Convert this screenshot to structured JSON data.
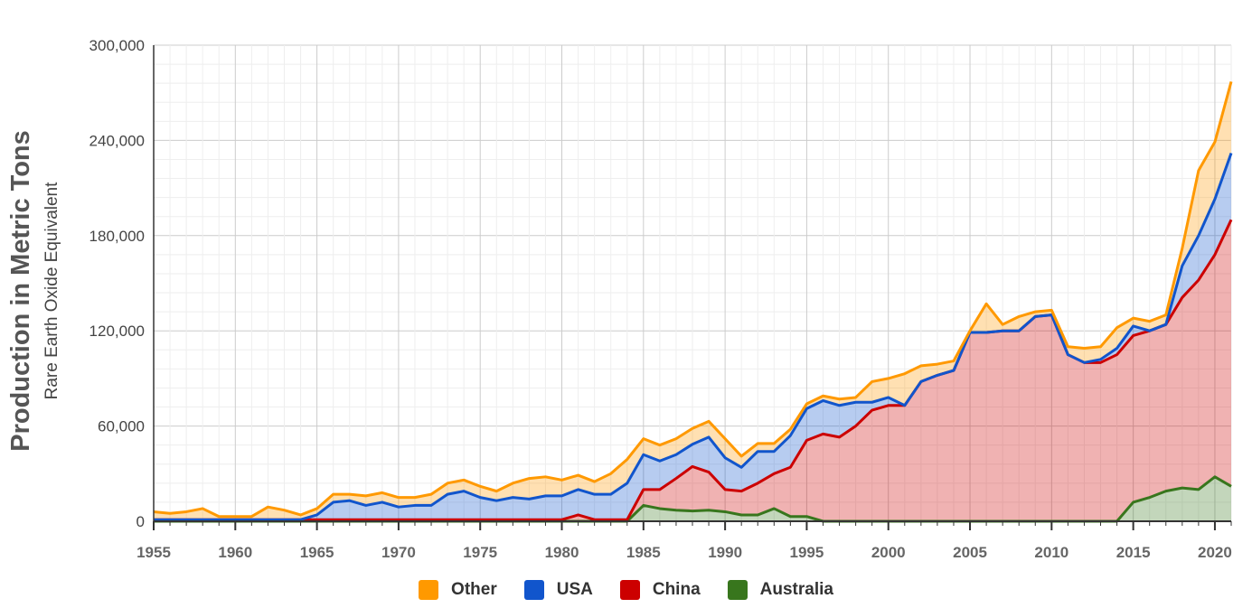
{
  "chart_data": {
    "type": "area",
    "stacked": true,
    "title": "",
    "ylabel": "Production in Metric Tons",
    "ylabel_sub": "Rare Earth Oxide Equivalent",
    "xlabel": "",
    "xlim": [
      1955,
      2021
    ],
    "ylim": [
      0,
      300000
    ],
    "x_ticks": [
      "1955",
      "1960",
      "1965",
      "1970",
      "1975",
      "1980",
      "1985",
      "1990",
      "1995",
      "2000",
      "2005",
      "2010",
      "2015",
      "2020"
    ],
    "y_ticks": [
      "0",
      "60,000",
      "120,000",
      "180,000",
      "240,000",
      "300,000"
    ],
    "y_tick_values": [
      0,
      60000,
      120000,
      180000,
      240000,
      300000
    ],
    "grid": true,
    "legend_position": "bottom",
    "x": [
      1955,
      1956,
      1957,
      1958,
      1959,
      1960,
      1961,
      1962,
      1963,
      1964,
      1965,
      1966,
      1967,
      1968,
      1969,
      1970,
      1971,
      1972,
      1973,
      1974,
      1975,
      1976,
      1977,
      1978,
      1979,
      1980,
      1981,
      1982,
      1983,
      1984,
      1985,
      1986,
      1987,
      1988,
      1989,
      1990,
      1991,
      1992,
      1993,
      1994,
      1995,
      1996,
      1997,
      1998,
      1999,
      2000,
      2001,
      2002,
      2003,
      2004,
      2005,
      2006,
      2007,
      2008,
      2009,
      2010,
      2011,
      2012,
      2013,
      2014,
      2015,
      2016,
      2017,
      2018,
      2019,
      2020,
      2021
    ],
    "series": [
      {
        "name": "Australia",
        "color": "#38761d",
        "values": [
          0,
          0,
          0,
          0,
          0,
          0,
          0,
          0,
          0,
          0,
          0,
          0,
          0,
          0,
          0,
          0,
          0,
          0,
          0,
          0,
          0,
          0,
          0,
          0,
          0,
          0,
          0,
          0,
          0,
          0,
          10000,
          8000,
          7000,
          6500,
          7000,
          6000,
          4000,
          4000,
          8000,
          3000,
          3000,
          0,
          0,
          0,
          0,
          0,
          0,
          0,
          0,
          0,
          0,
          0,
          0,
          0,
          0,
          0,
          0,
          0,
          0,
          0,
          12000,
          15000,
          19000,
          21000,
          20000,
          28000,
          22000
        ]
      },
      {
        "name": "China",
        "color": "#cc0000",
        "values": [
          1000,
          1000,
          1000,
          1000,
          1000,
          1000,
          1000,
          1000,
          1000,
          1000,
          1000,
          1000,
          1000,
          1000,
          1000,
          1000,
          1000,
          1000,
          1000,
          1000,
          1000,
          1000,
          1000,
          1000,
          1000,
          1000,
          4000,
          1000,
          1000,
          1000,
          10000,
          12000,
          20000,
          28000,
          24000,
          14000,
          15000,
          20000,
          22000,
          31000,
          48000,
          55000,
          53000,
          60000,
          70000,
          73000,
          73000,
          88000,
          92000,
          95000,
          119000,
          119000,
          120000,
          120000,
          129000,
          130000,
          105000,
          100000,
          100000,
          105000,
          105000,
          105000,
          105000,
          120000,
          132000,
          140000,
          168000
        ]
      },
      {
        "name": "USA",
        "color": "#1155cc",
        "values": [
          0,
          0,
          0,
          0,
          0,
          0,
          0,
          0,
          0,
          0,
          3000,
          11000,
          12000,
          9000,
          11000,
          8000,
          9000,
          9000,
          16000,
          18000,
          14000,
          12000,
          14000,
          13000,
          15000,
          15000,
          16000,
          16000,
          16000,
          23000,
          22000,
          18000,
          15000,
          14000,
          22000,
          20000,
          15000,
          20000,
          14000,
          20000,
          20000,
          21000,
          20000,
          15000,
          5000,
          5000,
          0,
          0,
          0,
          0,
          0,
          0,
          0,
          0,
          0,
          0,
          0,
          0,
          2000,
          4000,
          6000,
          0,
          0,
          20000,
          28000,
          35000,
          42000
        ]
      },
      {
        "name": "Other",
        "color": "#ff9900",
        "values": [
          5000,
          4000,
          5000,
          7000,
          2000,
          2000,
          2000,
          8000,
          6000,
          3000,
          4000,
          5000,
          4000,
          6000,
          6000,
          6000,
          5000,
          7000,
          7000,
          7000,
          7000,
          6000,
          9000,
          13000,
          12000,
          10000,
          9000,
          8000,
          13000,
          15000,
          10000,
          10000,
          10000,
          10000,
          10000,
          12000,
          7000,
          5000,
          5000,
          4000,
          3000,
          3000,
          4000,
          3000,
          13000,
          12000,
          20000,
          10000,
          7000,
          6000,
          1000,
          18000,
          4000,
          9000,
          3000,
          3000,
          5000,
          9000,
          8000,
          13000,
          5000,
          6000,
          6000,
          11000,
          41000,
          36000,
          45000
        ]
      }
    ]
  },
  "legend": {
    "items": [
      {
        "label": "Other",
        "color": "#ff9900"
      },
      {
        "label": "USA",
        "color": "#1155cc"
      },
      {
        "label": "China",
        "color": "#cc0000"
      },
      {
        "label": "Australia",
        "color": "#38761d"
      }
    ]
  }
}
